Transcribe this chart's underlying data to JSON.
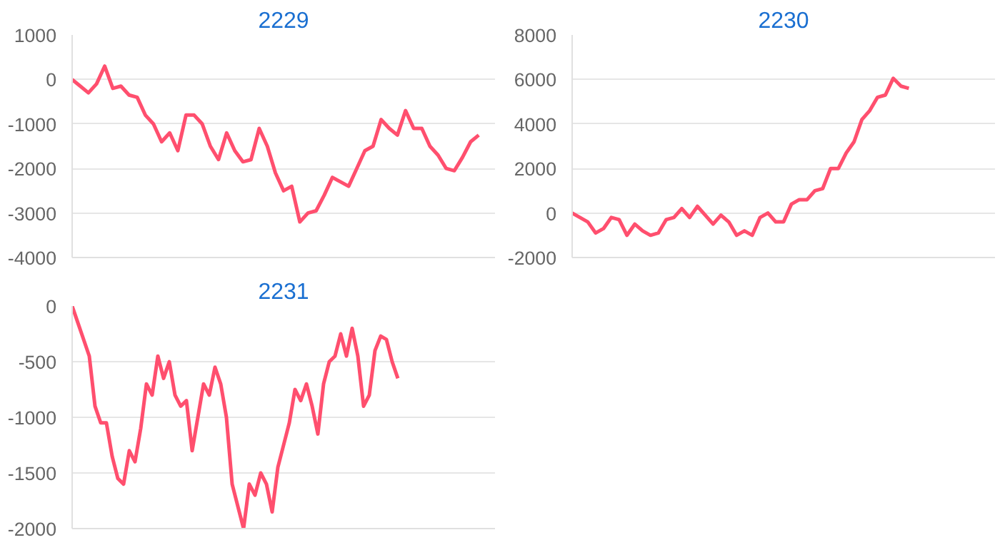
{
  "chart_data": [
    {
      "type": "line",
      "title": "2229",
      "categories": [
        null,
        null,
        null,
        null,
        null,
        null,
        null,
        null,
        null,
        null,
        null,
        null,
        null,
        null,
        null,
        null,
        null,
        null,
        null,
        null,
        null,
        null,
        null,
        null,
        null,
        null,
        null,
        null,
        null,
        null,
        null,
        null,
        null,
        null,
        null,
        null,
        null,
        null,
        null,
        null,
        null,
        null,
        null,
        null,
        null,
        null,
        null,
        null,
        null,
        null,
        null,
        null,
        null
      ],
      "series": [
        {
          "color": "#ff4f6e",
          "values": [
            0,
            -150,
            -300,
            -100,
            300,
            -200,
            -150,
            -350,
            -400,
            -800,
            -1000,
            -1400,
            -1200,
            -1600,
            -800,
            -800,
            -1000,
            -1500,
            -1800,
            -1200,
            -1600,
            -1850,
            -1800,
            -1100,
            -1500,
            -2100,
            -2500,
            -2400,
            -3200,
            -3000,
            -2950,
            -2600,
            -2200,
            -2300,
            -2400,
            -2000,
            -1600,
            -1500,
            -900,
            -1100,
            -1250,
            -700,
            -1100,
            -1100,
            -1500,
            -1700,
            -2000,
            -2050,
            -1750,
            -1400,
            -1250,
            null,
            null
          ]
        }
      ],
      "ylim": [
        -4000,
        1000
      ],
      "yticks": [
        -4000,
        -3000,
        -2000,
        -1000,
        0,
        1000
      ],
      "grid": "y",
      "tick_labels": "y"
    },
    {
      "type": "line",
      "title": "2230",
      "categories": [
        null,
        null,
        null,
        null,
        null,
        null,
        null,
        null,
        null,
        null,
        null,
        null,
        null,
        null,
        null,
        null,
        null,
        null,
        null,
        null,
        null,
        null,
        null,
        null,
        null,
        null,
        null,
        null,
        null,
        null,
        null,
        null,
        null,
        null,
        null,
        null,
        null,
        null,
        null,
        null,
        null,
        null,
        null,
        null,
        null,
        null,
        null,
        null,
        null,
        null,
        null,
        null,
        null,
        null,
        null
      ],
      "series": [
        {
          "color": "#ff4f6e",
          "values": [
            0,
            -200,
            -400,
            -900,
            -700,
            -200,
            -300,
            -1000,
            -500,
            -800,
            -1000,
            -900,
            -300,
            -200,
            200,
            -200,
            300,
            -100,
            -500,
            -100,
            -400,
            -1000,
            -800,
            -1000,
            -200,
            0,
            -400,
            -400,
            400,
            600,
            600,
            1000,
            1100,
            2000,
            2000,
            2700,
            3200,
            4200,
            4600,
            5200,
            5300,
            6050,
            5700,
            5600,
            null,
            null,
            null,
            null,
            null,
            null,
            null,
            null,
            null,
            null,
            null
          ]
        }
      ],
      "ylim": [
        -2000,
        8000
      ],
      "yticks": [
        -2000,
        0,
        2000,
        4000,
        6000,
        8000
      ],
      "grid": "y",
      "tick_labels": "y"
    },
    {
      "type": "line",
      "title": "2231",
      "categories": [
        null,
        null,
        null,
        null,
        null,
        null,
        null,
        null,
        null,
        null,
        null,
        null,
        null,
        null,
        null,
        null,
        null,
        null,
        null,
        null,
        null,
        null,
        null,
        null,
        null,
        null,
        null,
        null,
        null,
        null,
        null,
        null,
        null,
        null,
        null,
        null,
        null,
        null,
        null,
        null,
        null,
        null,
        null,
        null,
        null,
        null,
        null,
        null,
        null,
        null,
        null,
        null,
        null,
        null,
        null,
        null,
        null,
        null,
        null,
        null,
        null,
        null,
        null,
        null,
        null,
        null,
        null,
        null,
        null,
        null,
        null,
        null,
        null,
        null,
        null
      ],
      "series": [
        {
          "color": "#ff4f6e",
          "values": [
            0,
            -150,
            -300,
            -450,
            -900,
            -1050,
            -1050,
            -1350,
            -1550,
            -1600,
            -1300,
            -1400,
            -1100,
            -700,
            -800,
            -450,
            -650,
            -500,
            -800,
            -900,
            -850,
            -1300,
            -1000,
            -700,
            -800,
            -550,
            -700,
            -1000,
            -1600,
            -1800,
            -2000,
            -1600,
            -1700,
            -1500,
            -1600,
            -1850,
            -1450,
            -1250,
            -1050,
            -750,
            -850,
            -700,
            -900,
            -1150,
            -700,
            -500,
            -450,
            -250,
            -450,
            -200,
            -450,
            -900,
            -800,
            -400,
            -270,
            -300,
            -500,
            -650,
            null,
            null,
            null,
            null,
            null,
            null,
            null,
            null,
            null,
            null,
            null,
            null,
            null,
            null,
            null,
            null,
            null
          ]
        }
      ],
      "ylim": [
        -2000,
        0
      ],
      "yticks": [
        -2000,
        -1500,
        -1000,
        -500,
        0
      ],
      "grid": "y",
      "tick_labels": "y"
    }
  ]
}
